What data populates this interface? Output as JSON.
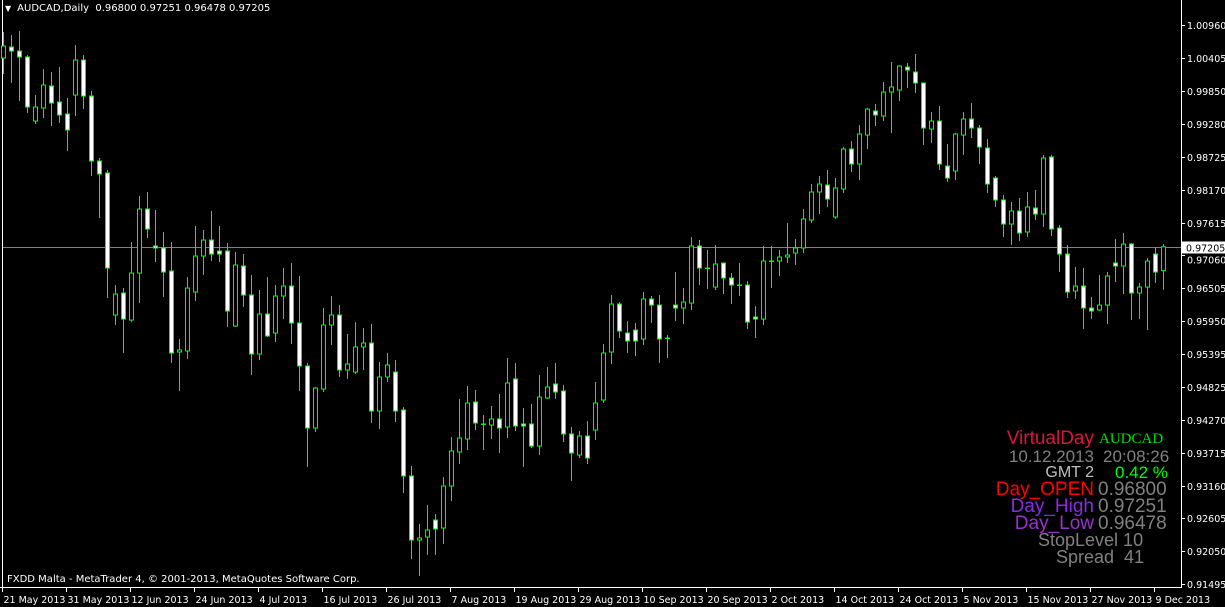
{
  "header": {
    "menu_icon": "triangle-down-icon",
    "title": "AUDCAD,Daily",
    "ohlc": "0.96800 0.97251 0.96478 0.97205"
  },
  "footer": "FXDD Malta - MetaTrader 4, © 2001-2013, MetaQuotes Software Corp.",
  "info_panel": {
    "title": "VirtualDay",
    "symbol": "AUDCAD",
    "date": "10.12.2013",
    "time": "20:08:26",
    "gmt": "GMT 2",
    "change": "0.42 %",
    "open_label": "Day_OPEN",
    "open_value": "0.96800",
    "high_label": "Day_High",
    "high_value": "0.97251",
    "low_label": "Day_Low",
    "low_value": "0.96478",
    "stoplevel": "StopLevel 10",
    "spread": "Spread  41",
    "colors": {
      "title": "#dc143c",
      "symbol": "#00e000",
      "values": "#808080",
      "gmt": "#c0c0c0",
      "change": "#00ff00",
      "open": "#ff0000",
      "high": "#8a2be2",
      "low": "#9932cc"
    }
  },
  "chart_data": {
    "type": "candlestick",
    "symbol": "AUDCAD",
    "timeframe": "Daily",
    "ylim": [
      0.91495,
      1.0096
    ],
    "current_price": "0.97205",
    "colors": {
      "background": "#000000",
      "candle_outline": "#00ff00",
      "bull_body": "#000000",
      "bear_body": "#ffffff",
      "bid_line": "#808080"
    },
    "y_tick_labels": [
      "1.00960",
      "1.00405",
      "0.99850",
      "0.99280",
      "0.98725",
      "0.98170",
      "0.97615",
      "0.97060",
      "0.96505",
      "0.95950",
      "0.95395",
      "0.94825",
      "0.94270",
      "0.93715",
      "0.93160",
      "0.92605",
      "0.92050",
      "0.91495"
    ],
    "x_tick_labels": [
      {
        "bar": 0,
        "label": "21 May 2013"
      },
      {
        "bar": 8,
        "label": "31 May 2013"
      },
      {
        "bar": 16,
        "label": "12 Jun 2013"
      },
      {
        "bar": 24,
        "label": "24 Jun 2013"
      },
      {
        "bar": 32,
        "label": "4 Jul 2013"
      },
      {
        "bar": 40,
        "label": "16 Jul 2013"
      },
      {
        "bar": 48,
        "label": "26 Jul 2013"
      },
      {
        "bar": 56,
        "label": "7 Aug 2013"
      },
      {
        "bar": 64,
        "label": "19 Aug 2013"
      },
      {
        "bar": 72,
        "label": "29 Aug 2013"
      },
      {
        "bar": 80,
        "label": "10 Sep 2013"
      },
      {
        "bar": 88,
        "label": "20 Sep 2013"
      },
      {
        "bar": 96,
        "label": "2 Oct 2013"
      },
      {
        "bar": 104,
        "label": "14 Oct 2013"
      },
      {
        "bar": 112,
        "label": "24 Oct 2013"
      },
      {
        "bar": 120,
        "label": "5 Nov 2013"
      },
      {
        "bar": 128,
        "label": "15 Nov 2013"
      },
      {
        "bar": 136,
        "label": "27 Nov 2013"
      },
      {
        "bar": 144,
        "label": "9 Dec 2013"
      }
    ],
    "ohlc": [
      [
        1.00401,
        1.00841,
        1.0013,
        1.00604
      ],
      [
        1.00587,
        1.0079,
        0.99978,
        1.00519
      ],
      [
        1.00519,
        1.00858,
        0.99673,
        1.00418
      ],
      [
        1.00418,
        1.00452,
        0.9947,
        0.99571
      ],
      [
        0.99334,
        0.99774,
        0.99283,
        0.99571
      ],
      [
        0.99554,
        1.00215,
        0.99385,
        0.99944
      ],
      [
        0.99927,
        1.00164,
        0.99249,
        0.99639
      ],
      [
        0.99656,
        1.00248,
        0.993,
        0.99436
      ],
      [
        0.99453,
        0.99724,
        0.98826,
        0.99182
      ],
      [
        0.99774,
        1.00621,
        0.99419,
        1.00367
      ],
      [
        1.00367,
        1.00452,
        0.99537,
        0.99757
      ],
      [
        0.99757,
        0.99842,
        0.98403,
        0.98657
      ],
      [
        0.98657,
        0.98708,
        0.97692,
        0.98437
      ],
      [
        0.98454,
        0.98505,
        0.96337,
        0.96845
      ],
      [
        0.96049,
        0.96557,
        0.9588,
        0.96405
      ],
      [
        0.96422,
        0.96506,
        0.95406,
        0.95981
      ],
      [
        0.95964,
        0.97285,
        0.9593,
        0.9676
      ],
      [
        0.9676,
        0.98064,
        0.96252,
        0.97844
      ],
      [
        0.97844,
        0.98132,
        0.97353,
        0.97505
      ],
      [
        0.97218,
        0.97827,
        0.96947,
        0.97184
      ],
      [
        0.97184,
        0.97455,
        0.96354,
        0.96777
      ],
      [
        0.96794,
        0.97285,
        0.95237,
        0.95406
      ],
      [
        0.95423,
        0.95643,
        0.94763,
        0.95457
      ],
      [
        0.9544,
        0.96693,
        0.95304,
        0.96506
      ],
      [
        0.96439,
        0.97556,
        0.96286,
        0.97048
      ],
      [
        0.97048,
        0.97488,
        0.96727,
        0.97319
      ],
      [
        0.97319,
        0.9781,
        0.96964,
        0.97082
      ],
      [
        0.97133,
        0.97556,
        0.96947,
        0.97082
      ],
      [
        0.97133,
        0.97268,
        0.95846,
        0.96117
      ],
      [
        0.95863,
        0.97116,
        0.95846,
        0.96896
      ],
      [
        0.96879,
        0.97082,
        0.96185,
        0.96388
      ],
      [
        0.96388,
        0.96727,
        0.95033,
        0.95389
      ],
      [
        0.95389,
        0.96472,
        0.95287,
        0.96066
      ],
      [
        0.96066,
        0.96693,
        0.95677,
        0.95694
      ],
      [
        0.95745,
        0.96557,
        0.95592,
        0.96371
      ],
      [
        0.96371,
        0.96845,
        0.95981,
        0.9654
      ],
      [
        0.9654,
        0.9693,
        0.95558,
        0.95914
      ],
      [
        0.95914,
        0.9671,
        0.94763,
        0.95186
      ],
      [
        0.95186,
        0.95237,
        0.93476,
        0.94136
      ],
      [
        0.94136,
        0.9483,
        0.94068,
        0.94813
      ],
      [
        0.94796,
        0.96168,
        0.94746,
        0.9588
      ],
      [
        0.9588,
        0.96371,
        0.95541,
        0.96049
      ],
      [
        0.96049,
        0.96218,
        0.95,
        0.95118
      ],
      [
        0.95118,
        0.95728,
        0.94966,
        0.9522
      ],
      [
        0.95084,
        0.9593,
        0.9505,
        0.95508
      ],
      [
        0.95508,
        0.95829,
        0.95118,
        0.95575
      ],
      [
        0.95575,
        0.95897,
        0.94221,
        0.94424
      ],
      [
        0.94424,
        0.95254,
        0.94119,
        0.95
      ],
      [
        0.95,
        0.95406,
        0.94915,
        0.95203
      ],
      [
        0.95084,
        0.95287,
        0.94238,
        0.94424
      ],
      [
        0.94441,
        0.94491,
        0.93035,
        0.93324
      ],
      [
        0.93324,
        0.93493,
        0.91917,
        0.92239
      ],
      [
        0.92239,
        0.9251,
        0.9163,
        0.92273
      ],
      [
        0.9229,
        0.92832,
        0.91985,
        0.92409
      ],
      [
        0.92578,
        0.9268,
        0.91985,
        0.92426
      ],
      [
        0.92443,
        0.93307,
        0.92172,
        0.93154
      ],
      [
        0.93154,
        0.93984,
        0.929,
        0.93747
      ],
      [
        0.9373,
        0.94627,
        0.93527,
        0.93967
      ],
      [
        0.9395,
        0.94847,
        0.93764,
        0.94559
      ],
      [
        0.94576,
        0.9478,
        0.94102,
        0.94221
      ],
      [
        0.94204,
        0.94356,
        0.93764,
        0.94204
      ],
      [
        0.94187,
        0.94508,
        0.9395,
        0.94289
      ],
      [
        0.94289,
        0.94712,
        0.93713,
        0.94136
      ],
      [
        0.94153,
        0.95321,
        0.93967,
        0.94898
      ],
      [
        0.94966,
        0.95237,
        0.94085,
        0.9417
      ],
      [
        0.94204,
        0.94475,
        0.93476,
        0.9417
      ],
      [
        0.94204,
        0.94542,
        0.93797,
        0.93831
      ],
      [
        0.93831,
        0.95033,
        0.93679,
        0.94661
      ],
      [
        0.94644,
        0.95169,
        0.94627,
        0.9483
      ],
      [
        0.94881,
        0.95237,
        0.94627,
        0.94746
      ],
      [
        0.94763,
        0.94864,
        0.93899,
        0.94035
      ],
      [
        0.94035,
        0.94153,
        0.93239,
        0.93713
      ],
      [
        0.93679,
        0.94085,
        0.93628,
        0.94001
      ],
      [
        0.94001,
        0.94255,
        0.93527,
        0.93628
      ],
      [
        0.94102,
        0.94915,
        0.93933,
        0.94559
      ],
      [
        0.9461,
        0.95558,
        0.94559,
        0.95406
      ],
      [
        0.95423,
        0.96388,
        0.9522,
        0.96235
      ],
      [
        0.96235,
        0.96269,
        0.9566,
        0.95778
      ],
      [
        0.95745,
        0.95947,
        0.95406,
        0.95609
      ],
      [
        0.95795,
        0.95914,
        0.95355,
        0.95609
      ],
      [
        0.95643,
        0.96439,
        0.95541,
        0.9632
      ],
      [
        0.9632,
        0.96371,
        0.95914,
        0.96218
      ],
      [
        0.96218,
        0.96388,
        0.95237,
        0.95643
      ],
      [
        0.9566,
        0.95711,
        0.95321,
        0.9566
      ],
      [
        0.96218,
        0.96777,
        0.95947,
        0.96168
      ],
      [
        0.96168,
        0.96506,
        0.95897,
        0.96269
      ],
      [
        0.96252,
        0.9737,
        0.96134,
        0.97218
      ],
      [
        0.97218,
        0.97319,
        0.96557,
        0.96845
      ],
      [
        0.96845,
        0.9715,
        0.96489,
        0.96845
      ],
      [
        0.96523,
        0.97234,
        0.96472,
        0.96913
      ],
      [
        0.9693,
        0.9693,
        0.96405,
        0.96676
      ],
      [
        0.96676,
        0.9676,
        0.96235,
        0.96557
      ],
      [
        0.96557,
        0.9693,
        0.96371,
        0.96557
      ],
      [
        0.96557,
        0.96625,
        0.95812,
        0.9593
      ],
      [
        0.96015,
        0.96201,
        0.9566,
        0.95981
      ],
      [
        0.95981,
        0.97218,
        0.9588,
        0.96964
      ],
      [
        0.96964,
        0.97218,
        0.96506,
        0.96964
      ],
      [
        0.96964,
        0.9715,
        0.9671,
        0.97031
      ],
      [
        0.97031,
        0.97607,
        0.9693,
        0.97065
      ],
      [
        0.97099,
        0.97336,
        0.96896,
        0.97184
      ],
      [
        0.97184,
        0.97844,
        0.97099,
        0.97675
      ],
      [
        0.97658,
        0.98267,
        0.97607,
        0.98132
      ],
      [
        0.98132,
        0.98403,
        0.97759,
        0.98267
      ],
      [
        0.9825,
        0.98505,
        0.97878,
        0.98013
      ],
      [
        0.97709,
        0.98369,
        0.97675,
        0.982
      ],
      [
        0.98183,
        0.98894,
        0.98115,
        0.9886
      ],
      [
        0.9886,
        0.98996,
        0.98471,
        0.98606
      ],
      [
        0.98606,
        0.99266,
        0.98335,
        0.99114
      ],
      [
        0.99097,
        0.99554,
        0.9886,
        0.99537
      ],
      [
        0.99504,
        0.99622,
        0.99249,
        0.99436
      ],
      [
        0.99419,
        0.99995,
        0.99334,
        0.99825
      ],
      [
        0.99825,
        1.00333,
        0.99131,
        0.9991
      ],
      [
        0.99859,
        1.00282,
        0.99673,
        1.00265
      ],
      [
        1.00248,
        1.00316,
        0.99893,
        1.00198
      ],
      [
        1.00164,
        1.00469,
        0.99808,
        0.99978
      ],
      [
        0.99978,
        0.99978,
        0.98928,
        0.99216
      ],
      [
        0.99199,
        0.99487,
        0.98962,
        0.99334
      ],
      [
        0.99334,
        0.99588,
        0.98505,
        0.98606
      ],
      [
        0.98572,
        0.98945,
        0.98301,
        0.98369
      ],
      [
        0.98488,
        0.99131,
        0.98335,
        0.99114
      ],
      [
        0.99097,
        0.99487,
        0.98759,
        0.99368
      ],
      [
        0.99368,
        0.99639,
        0.99046,
        0.99216
      ],
      [
        0.99216,
        0.99266,
        0.98606,
        0.98894
      ],
      [
        0.98877,
        0.99029,
        0.98115,
        0.98267
      ],
      [
        0.98369,
        0.98403,
        0.97878,
        0.97997
      ],
      [
        0.97997,
        0.98081,
        0.9737,
        0.9759
      ],
      [
        0.9759,
        0.97963,
        0.97234,
        0.9781
      ],
      [
        0.9781,
        0.9803,
        0.97302,
        0.97438
      ],
      [
        0.97455,
        0.98132,
        0.9737,
        0.97878
      ],
      [
        0.97861,
        0.98166,
        0.97658,
        0.97759
      ],
      [
        0.97759,
        0.98759,
        0.97539,
        0.98708
      ],
      [
        0.98725,
        0.98759,
        0.97387,
        0.97505
      ],
      [
        0.97522,
        0.97573,
        0.96777,
        0.97082
      ],
      [
        0.97082,
        0.97234,
        0.96337,
        0.96439
      ],
      [
        0.96456,
        0.96862,
        0.9632,
        0.9654
      ],
      [
        0.9654,
        0.96845,
        0.95812,
        0.96168
      ],
      [
        0.96168,
        0.96354,
        0.95981,
        0.96117
      ],
      [
        0.96134,
        0.96727,
        0.96117,
        0.96218
      ],
      [
        0.96218,
        0.96777,
        0.95897,
        0.9671
      ],
      [
        0.9693,
        0.97336,
        0.96608,
        0.96879
      ],
      [
        0.96879,
        0.97438,
        0.96405,
        0.97251
      ],
      [
        0.97251,
        0.97268,
        0.95964,
        0.96422
      ],
      [
        0.96422,
        0.96591,
        0.95981,
        0.96523
      ],
      [
        0.96523,
        0.97014,
        0.95795,
        0.96964
      ],
      [
        0.97082,
        0.97201,
        0.96591,
        0.96777
      ],
      [
        0.968,
        0.97251,
        0.96478,
        0.97205
      ]
    ]
  }
}
